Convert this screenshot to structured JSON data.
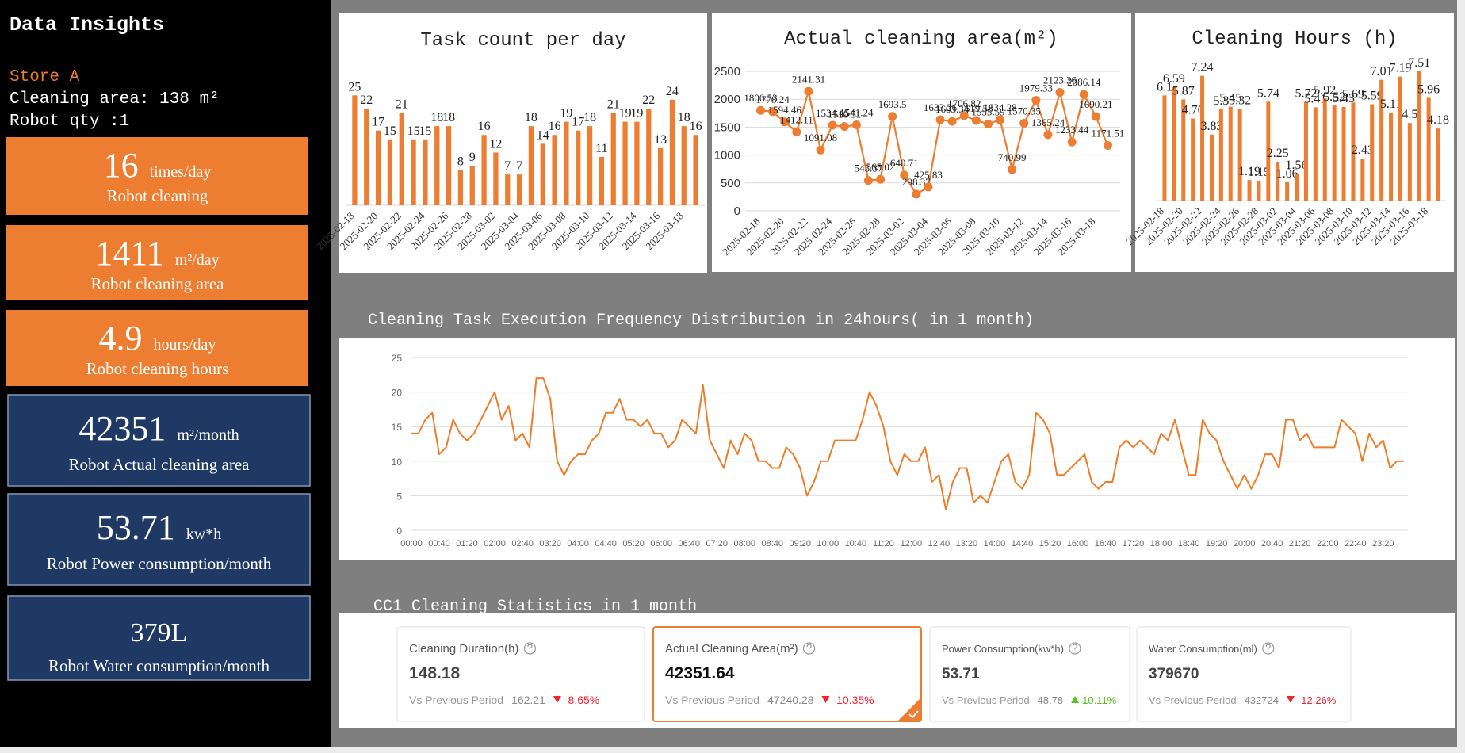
{
  "sidebar": {
    "title": "Data Insights",
    "store": "Store A",
    "area": "Cleaning area: 138 m²",
    "robots": "Robot qty :1",
    "metrics": [
      {
        "value": 16,
        "unit": "times/day",
        "label": "Robot cleaning"
      },
      {
        "value": 1411,
        "unit": "m²/day",
        "label": "Robot cleaning area"
      },
      {
        "value": 4.9,
        "unit": "hours/day",
        "label": "Robot cleaning hours"
      },
      {
        "value": 42351,
        "unit": "m²/month",
        "label": "Robot Actual cleaning area"
      },
      {
        "value": 53.71,
        "unit": "kw*h",
        "label": "Robot Power consumption/month"
      },
      {
        "value": "379L",
        "label": "Robot Water consumption/month"
      }
    ]
  },
  "chart_data": [
    {
      "type": "bar",
      "title": "Task count per day",
      "color": "#ed7d31",
      "data_labels": true,
      "categories": [
        "2025-02-18",
        null,
        "2025-02-20",
        null,
        "2025-02-22",
        null,
        "2025-02-24",
        null,
        "2025-02-26",
        null,
        "2025-02-28",
        null,
        "2025-03-02",
        null,
        "2025-03-04",
        null,
        "2025-03-06",
        null,
        "2025-03-08",
        null,
        "2025-03-10",
        null,
        "2025-03-12",
        null,
        "2025-03-14",
        null,
        "2025-03-16",
        null,
        "2025-03-18",
        null
      ],
      "values": [
        25,
        22,
        17,
        15,
        21,
        15,
        15,
        18,
        18,
        8,
        9,
        16,
        12,
        7,
        7,
        18,
        14,
        16,
        19,
        17,
        18,
        11,
        21,
        19,
        19,
        22,
        13,
        24,
        18,
        16
      ]
    },
    {
      "type": "line",
      "title": "Actual cleaning area(m²)",
      "color": "#ed7d31",
      "data_labels": true,
      "markers": true,
      "grid": true,
      "categories": [
        "2025-02-18",
        null,
        "2025-02-20",
        null,
        "2025-02-22",
        null,
        "2025-02-24",
        null,
        "2025-02-26",
        null,
        "2025-02-28",
        null,
        "2025-03-02",
        null,
        "2025-03-04",
        null,
        "2025-03-06",
        null,
        "2025-03-08",
        null,
        "2025-03-10",
        null,
        "2025-03-12",
        null,
        "2025-03-14",
        null,
        "2025-03-16",
        null,
        "2025-03-18",
        null
      ],
      "values": [
        1800.53,
        1778.24,
        1594.46,
        1412.11,
        2141.31,
        1091.08,
        1534.45,
        1510.51,
        1541.24,
        543.37,
        565.02,
        1693.5,
        640.71,
        298.37,
        425.83,
        1633.26,
        1603.34,
        1706.82,
        1619.58,
        1555.59,
        1634.28,
        740.99,
        1570.35,
        1979.33,
        1365.24,
        2123.26,
        1233.44,
        2086.14,
        1690.21,
        1171.51
      ],
      "ylim": [
        0,
        2500
      ],
      "yticks": [
        0,
        500,
        1000,
        1500,
        2000,
        2500
      ]
    },
    {
      "type": "bar",
      "title": "Cleaning Hours (h)",
      "color": "#ed7d31",
      "data_labels": true,
      "categories": [
        "2025-02-18",
        null,
        "2025-02-20",
        null,
        "2025-02-22",
        null,
        "2025-02-24",
        null,
        "2025-02-26",
        null,
        "2025-02-28",
        null,
        "2025-03-02",
        null,
        "2025-03-04",
        null,
        "2025-03-06",
        null,
        "2025-03-08",
        null,
        "2025-03-10",
        null,
        "2025-03-12",
        null,
        "2025-03-14",
        null,
        "2025-03-16",
        null,
        "2025-03-18",
        null
      ],
      "values": [
        6.1,
        6.59,
        5.87,
        4.76,
        7.24,
        3.83,
        5.3,
        5.45,
        5.32,
        1.19,
        1.15,
        5.74,
        2.25,
        1.06,
        1.56,
        5.72,
        5.41,
        5.92,
        5.52,
        5.43,
        5.69,
        2.43,
        5.59,
        7.01,
        5.11,
        7.19,
        4.5,
        7.51,
        5.96,
        4.18
      ]
    },
    {
      "type": "line",
      "title": "Cleaning Task Execution Frequency Distribution in 24hours( in 1 month)",
      "color": "#f07c28",
      "data_labels": false,
      "markers": false,
      "grid": true,
      "categories": [
        "00:00",
        null,
        null,
        null,
        "00:40",
        null,
        null,
        null,
        "01:20",
        null,
        null,
        null,
        "02:00",
        null,
        null,
        null,
        "02:40",
        null,
        null,
        null,
        "03:20",
        null,
        null,
        null,
        "04:00",
        null,
        null,
        null,
        "04:40",
        null,
        null,
        null,
        "05:20",
        null,
        null,
        null,
        "06:00",
        null,
        null,
        null,
        "06:40",
        null,
        null,
        null,
        "07:20",
        null,
        null,
        null,
        "08:00",
        null,
        null,
        null,
        "08:40",
        null,
        null,
        null,
        "09:20",
        null,
        null,
        null,
        "10:00",
        null,
        null,
        null,
        "10:40",
        null,
        null,
        null,
        "11:20",
        null,
        null,
        null,
        "12:00",
        null,
        null,
        null,
        "12:40",
        null,
        null,
        null,
        "13:20",
        null,
        null,
        null,
        "14:00",
        null,
        null,
        null,
        "14:40",
        null,
        null,
        null,
        "15:20",
        null,
        null,
        null,
        "16:00",
        null,
        null,
        null,
        "16:40",
        null,
        null,
        null,
        "17:20",
        null,
        null,
        null,
        "18:00",
        null,
        null,
        null,
        "18:40",
        null,
        null,
        null,
        "19:20",
        null,
        null,
        null,
        "20:00",
        null,
        null,
        null,
        "20:40",
        null,
        null,
        null,
        "21:20",
        null,
        null,
        null,
        "22:00",
        null,
        null,
        null,
        "22:40",
        null,
        null,
        null,
        "23:20",
        null,
        null,
        null
      ],
      "values": [
        14,
        14,
        16,
        17,
        11,
        12,
        16,
        14,
        13,
        14,
        16,
        18,
        20,
        16,
        18,
        13,
        14,
        12,
        22,
        22,
        19,
        10,
        8,
        10,
        11,
        11,
        13,
        14,
        17,
        17,
        19,
        16,
        16,
        15,
        16,
        14,
        14,
        12,
        13,
        16,
        15,
        14,
        21,
        13,
        11,
        9,
        13,
        11,
        14,
        13,
        10,
        10,
        9,
        9,
        12,
        11,
        9,
        5,
        7,
        10,
        10,
        13,
        13,
        13,
        13,
        16,
        20,
        18,
        15,
        10,
        8,
        11,
        10,
        10,
        12,
        7,
        8,
        3,
        7,
        9,
        9,
        4,
        5,
        4,
        7,
        10,
        11,
        7,
        6,
        8,
        17,
        16,
        14,
        8,
        8,
        9,
        10,
        11,
        7,
        6,
        7,
        7,
        12,
        13,
        12,
        13,
        12,
        11,
        14,
        13,
        16,
        12,
        8,
        8,
        16,
        14,
        13,
        10,
        8,
        6,
        8,
        6,
        8,
        11,
        11,
        9,
        16,
        16,
        13,
        14,
        12,
        12,
        12,
        12,
        16,
        15,
        14,
        10,
        14,
        12,
        13,
        9,
        10,
        10
      ],
      "ylim": [
        0,
        25
      ],
      "yticks": [
        0,
        5,
        10,
        15,
        20,
        25
      ]
    }
  ],
  "stats": {
    "title": "CC1 Cleaning Statistics in 1 month",
    "cards": [
      {
        "title": "Cleaning Duration(h)",
        "value": 148.18,
        "compare": "Vs Previous Period",
        "previous": 162.21,
        "change": "-8.65%"
      },
      {
        "title": "Actual Cleaning Area(m²)",
        "value": 42351.64,
        "compare": "Vs Previous Period",
        "previous": 47240.28,
        "change": "-10.35%"
      },
      {
        "title": "Power Consumption(kw*h)",
        "value": 53.71,
        "compare": "Vs Previous Period",
        "previous": 48.78,
        "change": "10.11%"
      },
      {
        "title": "Water Consumption(ml)",
        "value": 379670,
        "compare": "Vs Previous Period",
        "previous": 432724,
        "change": "-12.26%"
      }
    ]
  }
}
